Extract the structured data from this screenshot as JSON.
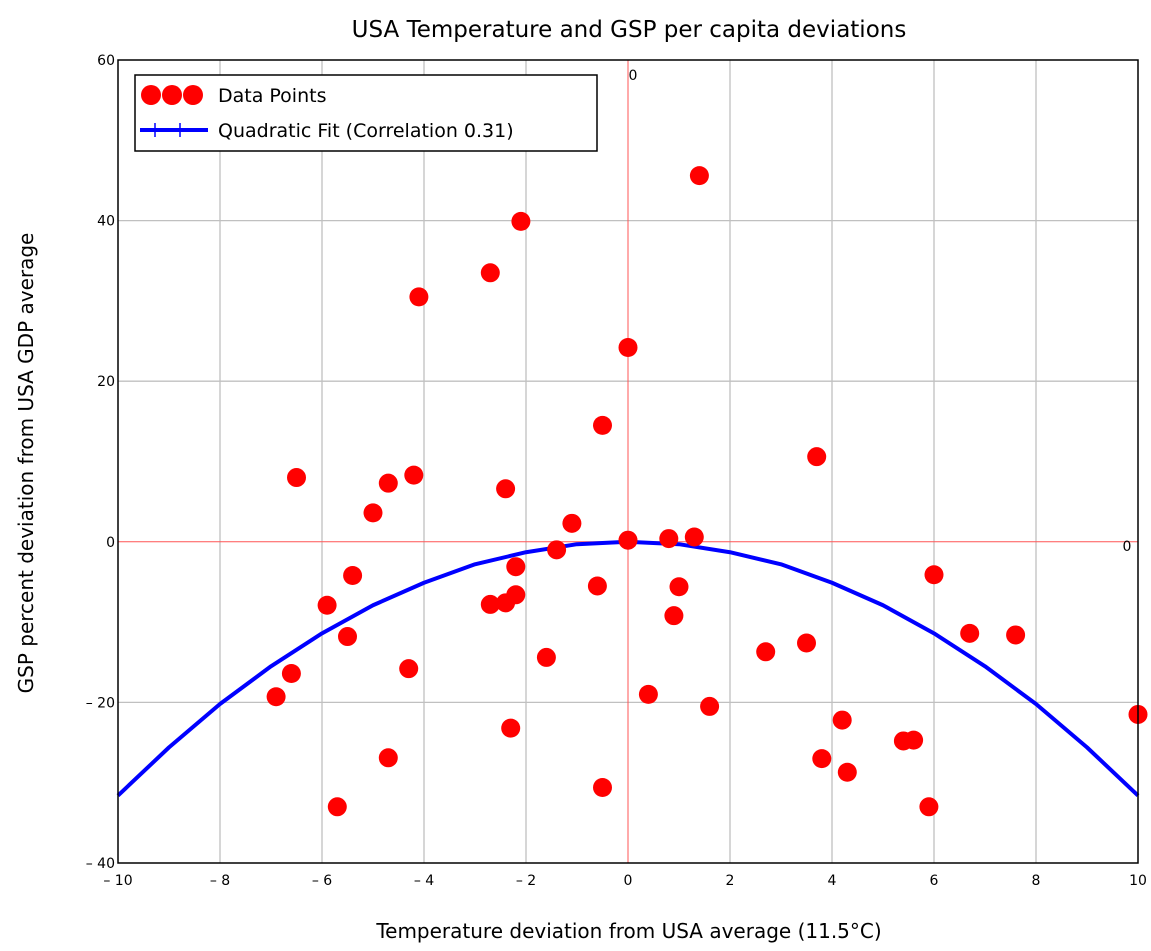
{
  "chart_data": {
    "type": "scatter",
    "title": "USA Temperature and GSP per capita deviations",
    "xlabel": "Temperature deviation from USA average (11.5°C)",
    "ylabel": "GSP percent deviation from USA GDP average",
    "xlim": [
      -10,
      10
    ],
    "ylim": [
      -40,
      60
    ],
    "grid": true,
    "legend_placement": "top-left",
    "x_ticks": [
      -10,
      -8,
      -6,
      -4,
      -2,
      0,
      2,
      4,
      6,
      8,
      10
    ],
    "y_ticks": [
      -40,
      -20,
      0,
      20,
      40,
      60
    ],
    "x_tick_labels": [
      "– 10",
      "– 8",
      "– 6",
      "– 4",
      "– 2",
      "0",
      "2",
      "4",
      "6",
      "8",
      "10"
    ],
    "y_tick_labels": [
      "– 40",
      "– 20",
      "0",
      "20",
      "40",
      "60"
    ],
    "origin_markers": {
      "top": "0",
      "right": "0"
    },
    "series": [
      {
        "name": "Data Points",
        "type": "scatter",
        "color": "#ff0000",
        "points": [
          [
            1.4,
            45.6
          ],
          [
            -2.1,
            39.9
          ],
          [
            -2.7,
            33.5
          ],
          [
            -4.1,
            30.5
          ],
          [
            0.0,
            24.2
          ],
          [
            -0.5,
            14.5
          ],
          [
            3.7,
            10.6
          ],
          [
            -6.5,
            8.0
          ],
          [
            -4.2,
            8.3
          ],
          [
            -4.7,
            7.3
          ],
          [
            -2.4,
            6.6
          ],
          [
            -5.0,
            3.6
          ],
          [
            -1.1,
            2.3
          ],
          [
            0.0,
            0.2
          ],
          [
            0.8,
            0.4
          ],
          [
            1.3,
            0.6
          ],
          [
            -1.4,
            -1.0
          ],
          [
            -2.2,
            -3.1
          ],
          [
            -5.4,
            -4.2
          ],
          [
            6.0,
            -4.1
          ],
          [
            -0.6,
            -5.5
          ],
          [
            1.0,
            -5.6
          ],
          [
            -2.2,
            -6.6
          ],
          [
            -2.4,
            -7.6
          ],
          [
            -2.7,
            -7.8
          ],
          [
            -5.9,
            -7.9
          ],
          [
            0.9,
            -9.2
          ],
          [
            6.7,
            -11.4
          ],
          [
            7.6,
            -11.6
          ],
          [
            -5.5,
            -11.8
          ],
          [
            3.5,
            -12.6
          ],
          [
            2.7,
            -13.7
          ],
          [
            -1.6,
            -14.4
          ],
          [
            -4.3,
            -15.8
          ],
          [
            -6.6,
            -16.4
          ],
          [
            -6.9,
            -19.3
          ],
          [
            0.4,
            -19.0
          ],
          [
            1.6,
            -20.5
          ],
          [
            10.0,
            -21.5
          ],
          [
            4.2,
            -22.2
          ],
          [
            -2.3,
            -23.2
          ],
          [
            5.4,
            -24.8
          ],
          [
            5.6,
            -24.7
          ],
          [
            -4.7,
            -26.9
          ],
          [
            3.8,
            -27.0
          ],
          [
            4.3,
            -28.7
          ],
          [
            -0.5,
            -30.6
          ],
          [
            -5.7,
            -33.0
          ],
          [
            5.9,
            -33.0
          ]
        ]
      },
      {
        "name": "Quadratic Fit (Correlation 0.31)",
        "type": "line",
        "color": "#0000ff",
        "x": [
          -10,
          -9,
          -8,
          -7,
          -6,
          -5,
          -4,
          -3,
          -2,
          -1,
          0,
          1,
          2,
          3,
          4,
          5,
          6,
          7,
          8,
          9,
          10
        ],
        "y": [
          -31.6,
          -25.6,
          -20.2,
          -15.5,
          -11.4,
          -7.9,
          -5.1,
          -2.8,
          -1.3,
          -0.3,
          0,
          -0.3,
          -1.3,
          -2.8,
          -5.1,
          -7.9,
          -11.4,
          -15.5,
          -20.2,
          -25.6,
          -31.6
        ]
      }
    ]
  }
}
